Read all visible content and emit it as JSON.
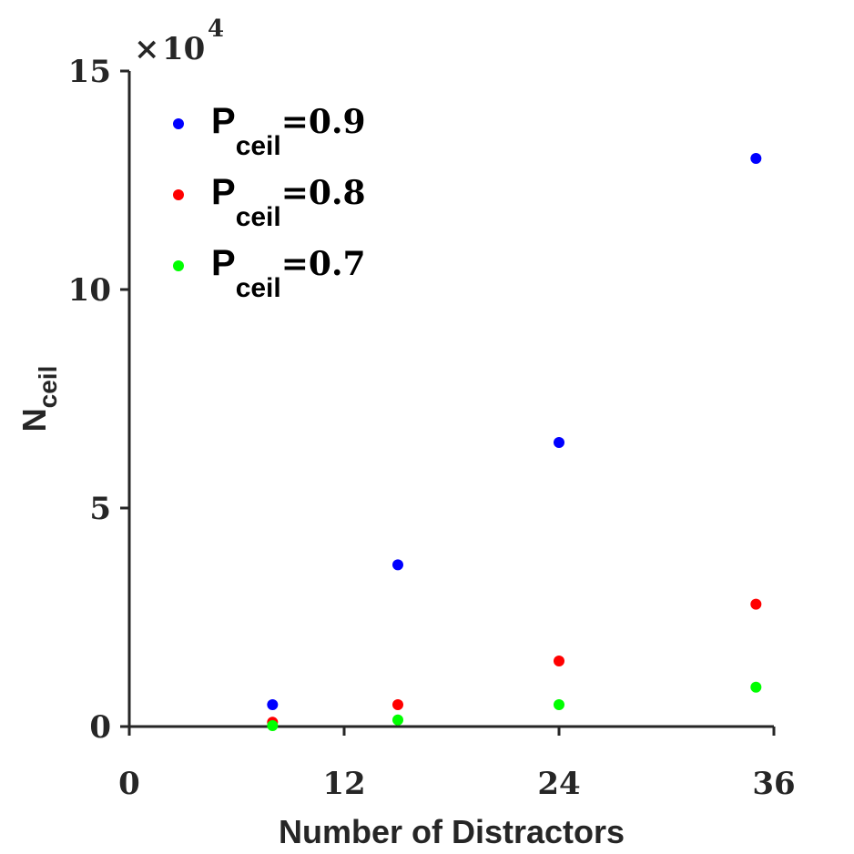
{
  "chart_data": {
    "type": "scatter",
    "title": "",
    "xlabel": "Number of Distractors",
    "ylabel": "N",
    "ylabel_sub": "ceil",
    "xlim": [
      0,
      36
    ],
    "ylim": [
      0,
      150000
    ],
    "x_ticks": [
      "0",
      "12",
      "24",
      "36"
    ],
    "y_ticks": [
      "0",
      "5",
      "10",
      "15"
    ],
    "y_exponent": {
      "times": "×",
      "base": "10",
      "power": "4"
    },
    "grid": false,
    "legend_position": "top-left",
    "series": [
      {
        "name": "P",
        "name_sub": "ceil",
        "name_suffix": "=0.9",
        "color": "#0000ff",
        "x": [
          8,
          15,
          24,
          35
        ],
        "y": [
          5000,
          37000,
          65000,
          130000
        ]
      },
      {
        "name": "P",
        "name_sub": "ceil",
        "name_suffix": "=0.8",
        "color": "#ff0000",
        "x": [
          8,
          15,
          24,
          35
        ],
        "y": [
          1000,
          5000,
          15000,
          28000
        ]
      },
      {
        "name": "P",
        "name_sub": "ceil",
        "name_suffix": "=0.7",
        "color": "#00ff00",
        "x": [
          8,
          15,
          24,
          35
        ],
        "y": [
          200,
          1500,
          5000,
          9000
        ]
      }
    ]
  }
}
